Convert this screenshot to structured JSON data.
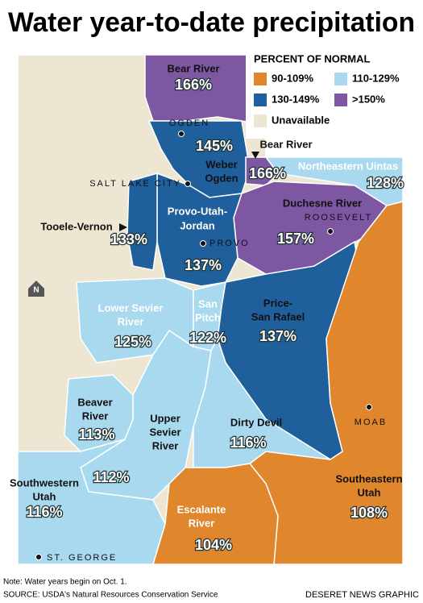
{
  "title": "Water year-to-date precipitation",
  "legend": {
    "title": "PERCENT OF NORMAL",
    "items": [
      {
        "label": "90-109%",
        "color": "#e0862c"
      },
      {
        "label": "110-129%",
        "color": "#a9d9ef"
      },
      {
        "label": "130-149%",
        "color": "#1f5f9b"
      },
      {
        "label": ">150%",
        "color": "#7e57a3"
      },
      {
        "label": "Unavailable",
        "color": "#ece6d3"
      }
    ]
  },
  "regions": [
    {
      "name": [
        "Bear River"
      ],
      "value": "166%",
      "color": "#7e57a3"
    },
    {
      "name": [
        "Weber",
        "Ogden"
      ],
      "value": "145%",
      "color": "#1f5f9b"
    },
    {
      "name": [
        "Bear River"
      ],
      "value": "166%",
      "color": "#7e57a3"
    },
    {
      "name": [
        "Northeastern Uintas"
      ],
      "value": "128%",
      "color": "#a9d9ef"
    },
    {
      "name": [
        "Duchesne River"
      ],
      "value": "157%",
      "color": "#7e57a3"
    },
    {
      "name": [
        "Provo-Utah-",
        "Jordan"
      ],
      "value": "137%",
      "color": "#1f5f9b"
    },
    {
      "name": [
        "Tooele-Vernon"
      ],
      "value": "133%",
      "color": "#1f5f9b"
    },
    {
      "name": [
        "Price-",
        "San Rafael"
      ],
      "value": "137%",
      "color": "#1f5f9b"
    },
    {
      "name": [
        "Southeastern",
        "Utah"
      ],
      "value": "108%",
      "color": "#e0862c"
    },
    {
      "name": [
        "San",
        "Pitch"
      ],
      "value": "122%",
      "color": "#a9d9ef"
    },
    {
      "name": [
        "Lower Sevier",
        "River"
      ],
      "value": "125%",
      "color": "#a9d9ef"
    },
    {
      "name": [
        "Beaver",
        "River"
      ],
      "value": "113%",
      "color": "#a9d9ef"
    },
    {
      "name": [
        "Upper",
        "Sevier",
        "River"
      ],
      "value": "112%",
      "color": "#a9d9ef"
    },
    {
      "name": [
        "Dirty Devil"
      ],
      "value": "116%",
      "color": "#a9d9ef"
    },
    {
      "name": [
        "Southwestern",
        "Utah"
      ],
      "value": "116%",
      "color": "#a9d9ef"
    },
    {
      "name": [
        "Escalante",
        "River"
      ],
      "value": "104%",
      "color": "#e0862c"
    }
  ],
  "cities": [
    "OGDEN",
    "SALT LAKE CITY",
    "PROVO",
    "ROOSEVELT",
    "MOAB",
    "ST. GEORGE"
  ],
  "notes": [
    "Note: Water years begin on Oct. 1.",
    "SOURCE: USDA's Natural Resources Conservation Service"
  ],
  "credit": "DESERET NEWS GRAPHIC"
}
